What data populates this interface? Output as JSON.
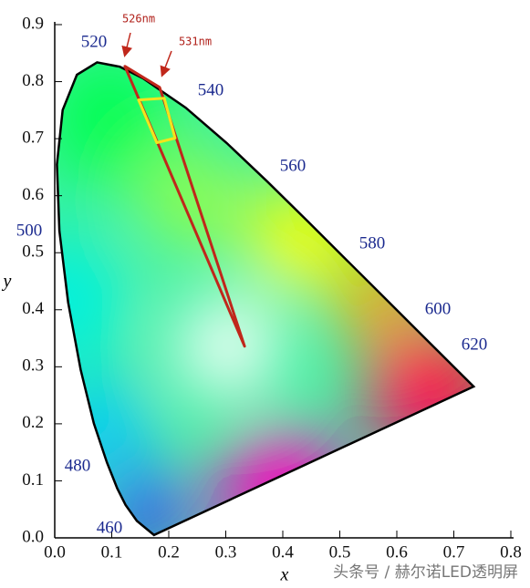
{
  "chart_data": {
    "type": "chromaticity",
    "xlabel": "x",
    "ylabel": "y",
    "xlim": [
      0,
      0.8
    ],
    "ylim": [
      0,
      0.9
    ],
    "xticks": [
      {
        "value": 0,
        "label": "0.0"
      },
      0.1,
      0.2,
      0.3,
      0.4,
      0.5,
      0.6,
      0.7,
      0.8
    ],
    "yticks": [
      {
        "value": 0,
        "label": "0.0"
      },
      0.1,
      0.2,
      0.3,
      0.4,
      0.5,
      0.6,
      0.7,
      0.8,
      0.9
    ],
    "locus": {
      "color": "#000000",
      "x": [
        0.1741,
        0.144,
        0.1241,
        0.1096,
        0.0913,
        0.0687,
        0.0454,
        0.0235,
        0.0082,
        0.0039,
        0.0139,
        0.0389,
        0.0743,
        0.1142,
        0.1547,
        0.2296,
        0.3016,
        0.3731,
        0.4441,
        0.5125,
        0.5752,
        0.627,
        0.6658,
        0.6915,
        0.719,
        0.7347
      ],
      "y": [
        0.005,
        0.0297,
        0.0578,
        0.0868,
        0.1327,
        0.2007,
        0.295,
        0.4127,
        0.5384,
        0.6548,
        0.7502,
        0.812,
        0.8338,
        0.8262,
        0.8059,
        0.7543,
        0.6923,
        0.6245,
        0.5547,
        0.4866,
        0.4242,
        0.3725,
        0.334,
        0.3083,
        0.2809,
        0.2653
      ]
    },
    "regions": [
      {
        "color": "#c0271b",
        "x": [
          0.123,
          0.184,
          0.333
        ],
        "y": [
          0.827,
          0.79,
          0.336
        ]
      },
      {
        "color": "#f2e41c",
        "x": [
          0.147,
          0.192,
          0.211,
          0.179
        ],
        "y": [
          0.768,
          0.771,
          0.701,
          0.693
        ]
      }
    ],
    "wavelength_labels": [
      460,
      480,
      500,
      520,
      540,
      560,
      580,
      600,
      620
    ],
    "annotations": [
      "526nm",
      "531nm"
    ],
    "watermark": "头条号 / 赫尔诺LED透明屏"
  }
}
